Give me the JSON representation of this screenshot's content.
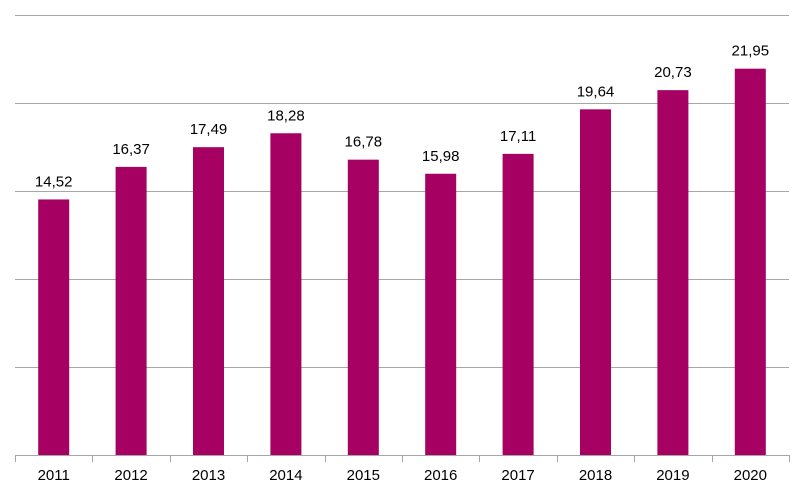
{
  "chart_data": {
    "type": "bar",
    "categories": [
      "2011",
      "2012",
      "2013",
      "2014",
      "2015",
      "2016",
      "2017",
      "2018",
      "2019",
      "2020"
    ],
    "values": [
      14.52,
      16.37,
      17.49,
      18.28,
      16.78,
      15.98,
      17.11,
      19.64,
      20.73,
      21.95
    ],
    "value_labels": [
      "14,52",
      "16,37",
      "17,49",
      "18,28",
      "16,78",
      "15,98",
      "17,11",
      "19,64",
      "20,73",
      "21,95"
    ],
    "ylim": [
      0,
      25
    ],
    "y_gridlines": [
      5,
      10,
      15,
      20,
      25
    ],
    "grid": true,
    "legend": "none",
    "bar_color": "#a50062",
    "gridline_color": "#a6a6a6"
  }
}
